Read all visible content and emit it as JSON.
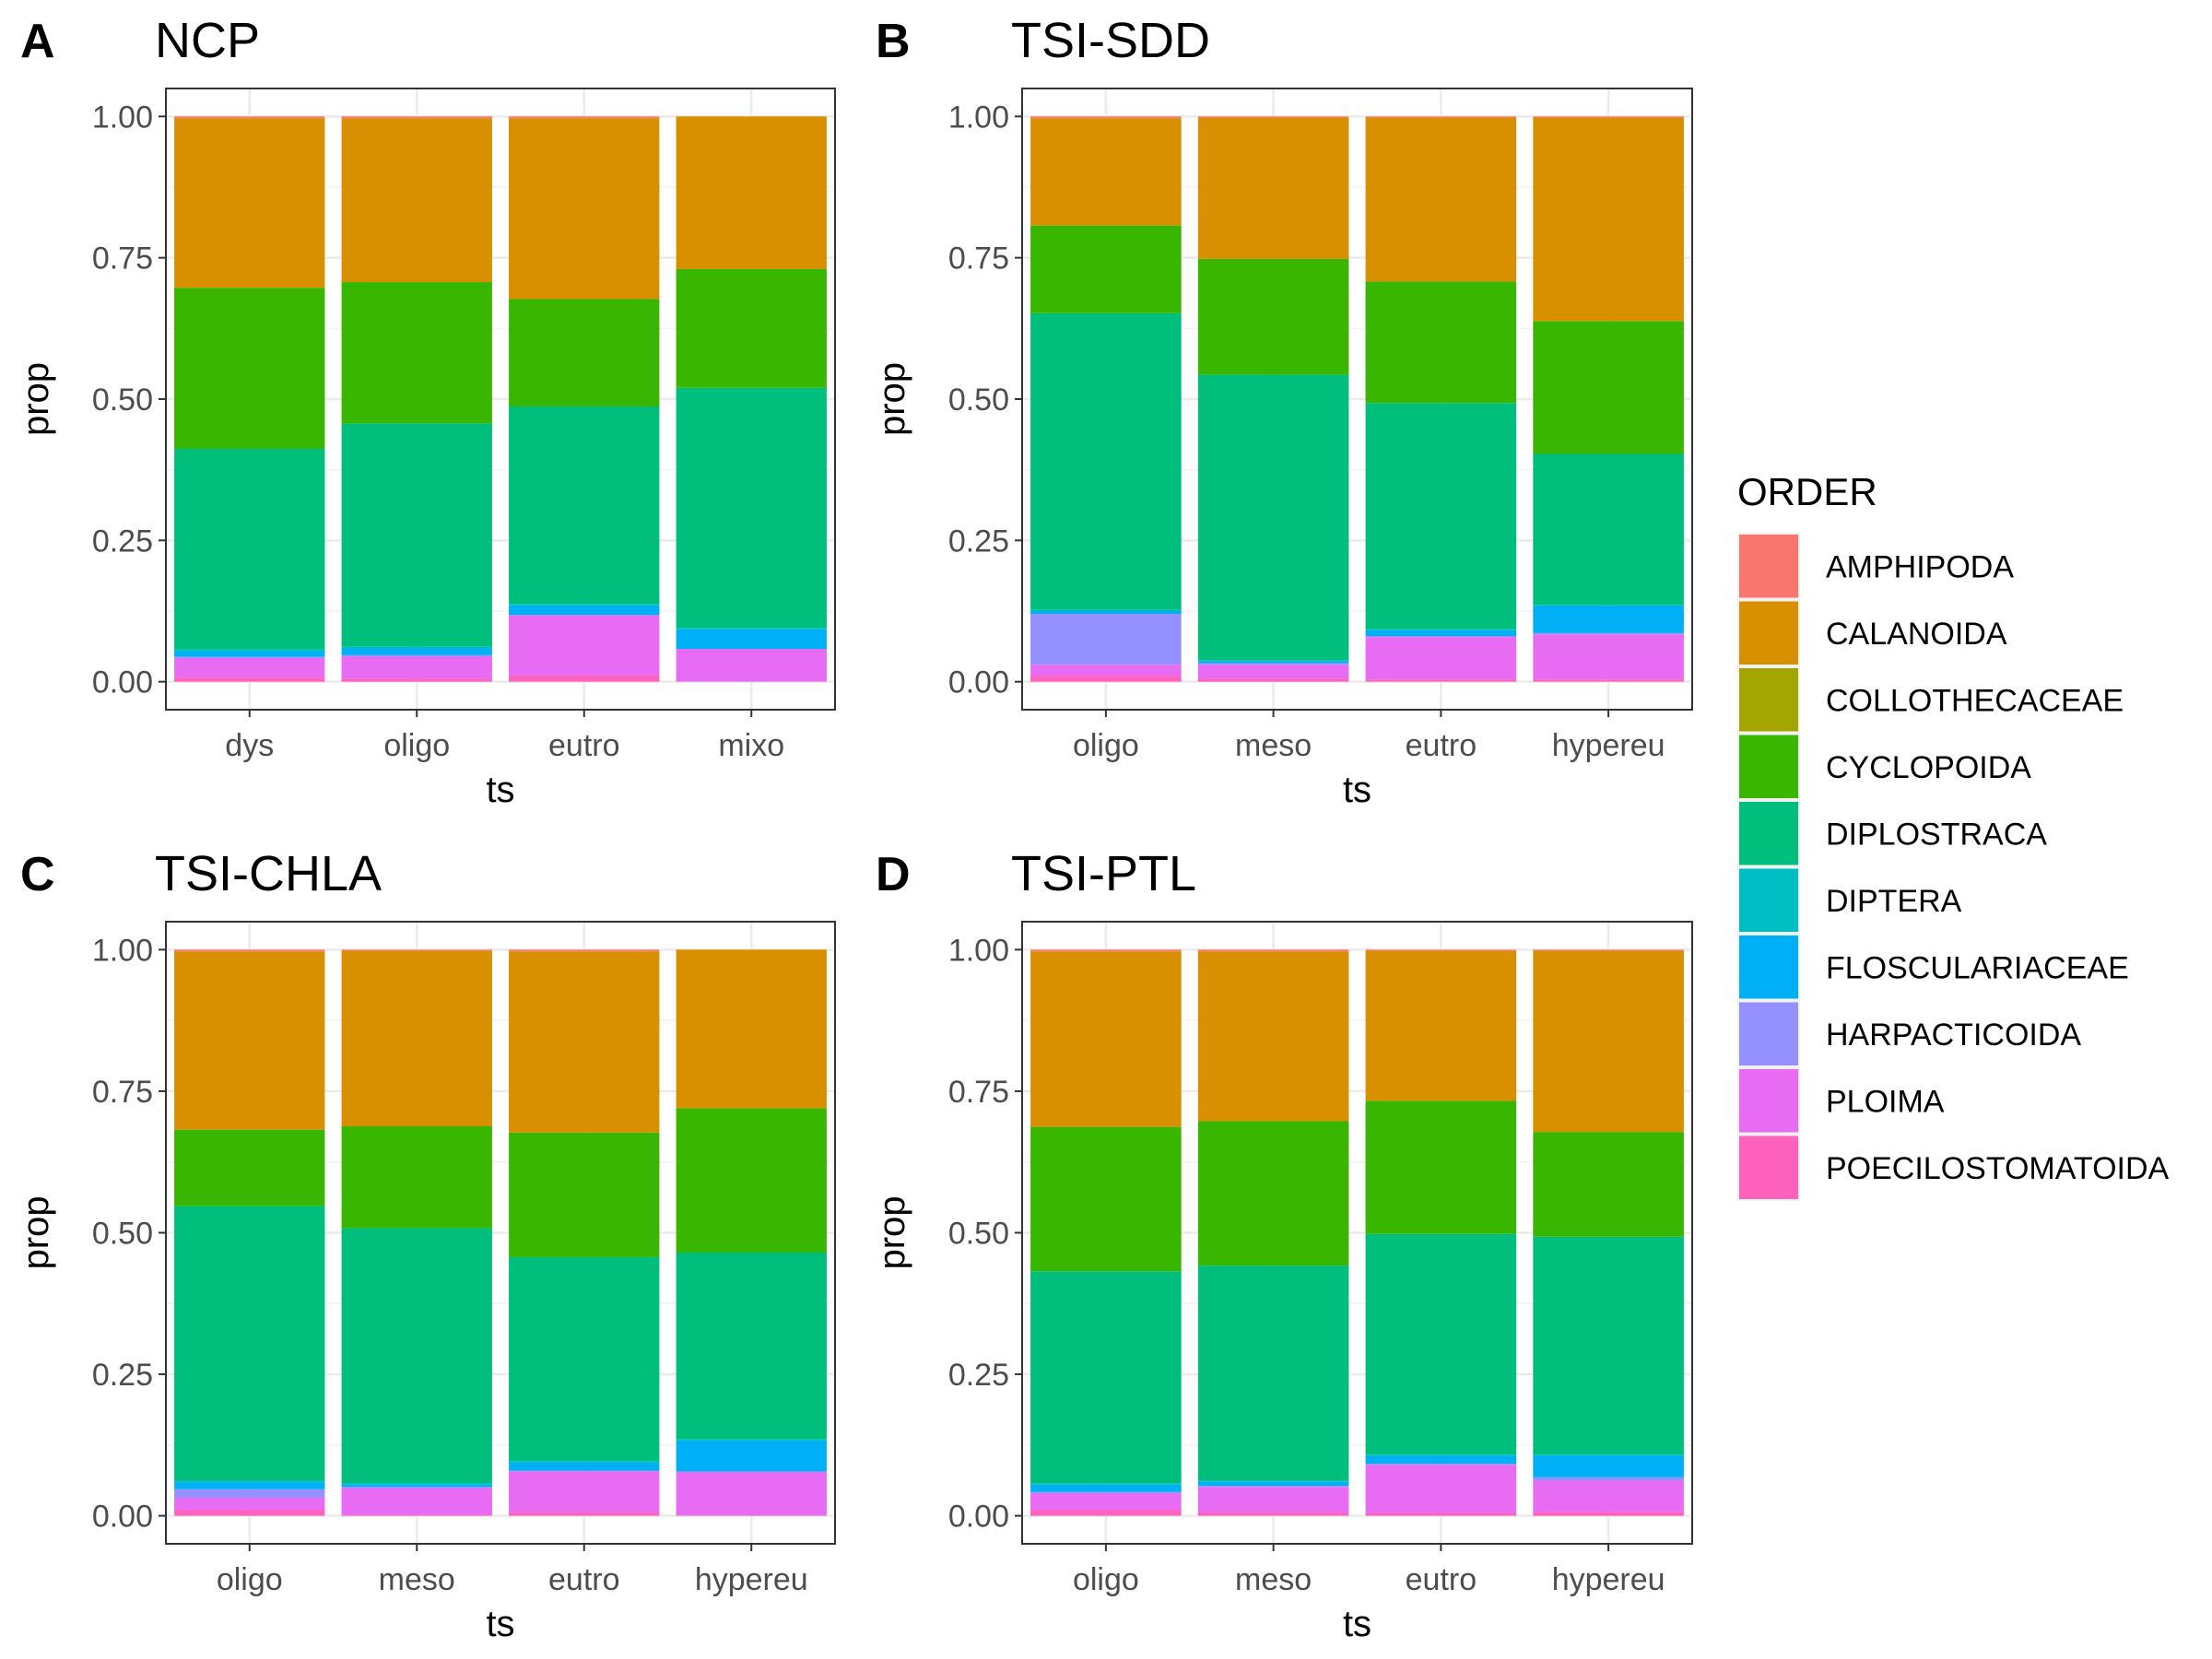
{
  "legend": {
    "title": "ORDER",
    "items": [
      {
        "label": "AMPHIPODA",
        "color": "#F8766D"
      },
      {
        "label": "CALANOIDA",
        "color": "#D89000"
      },
      {
        "label": "COLLOTHECACEAE",
        "color": "#A3A500"
      },
      {
        "label": "CYCLOPOIDA",
        "color": "#39B600"
      },
      {
        "label": "DIPLOSTRACA",
        "color": "#00BF7D"
      },
      {
        "label": "DIPTERA",
        "color": "#00BFC4"
      },
      {
        "label": "FLOSCULARIACEAE",
        "color": "#00B0F6"
      },
      {
        "label": "HARPACTICOIDA",
        "color": "#9590FF"
      },
      {
        "label": "PLOIMA",
        "color": "#E76BF3"
      },
      {
        "label": "POECILOSTOMATOIDA",
        "color": "#FF62BC"
      }
    ]
  },
  "chart_data": [
    {
      "type": "bar",
      "stacked": true,
      "panel_letter": "A",
      "title": "NCP",
      "xlabel": "ts",
      "ylabel": "prop",
      "ylim": [
        0,
        1
      ],
      "yticks": [
        "0.00",
        "0.25",
        "0.50",
        "0.75",
        "1.00"
      ],
      "grid": true,
      "categories": [
        "dys",
        "oligo",
        "eutro",
        "mixo"
      ],
      "series": [
        {
          "name": "AMPHIPODA",
          "values": [
            0.003,
            0.003,
            0.003,
            0.0
          ]
        },
        {
          "name": "CALANOIDA",
          "values": [
            0.3,
            0.29,
            0.32,
            0.27
          ]
        },
        {
          "name": "COLLOTHECACEAE",
          "values": [
            0.0,
            0.0,
            0.0,
            0.0
          ]
        },
        {
          "name": "CYCLOPOIDA",
          "values": [
            0.285,
            0.25,
            0.19,
            0.21
          ]
        },
        {
          "name": "DIPLOSTRACA",
          "values": [
            0.355,
            0.395,
            0.35,
            0.425
          ]
        },
        {
          "name": "DIPTERA",
          "values": [
            0.003,
            0.003,
            0.002,
            0.002
          ]
        },
        {
          "name": "FLOSCULARIACEAE",
          "values": [
            0.01,
            0.012,
            0.017,
            0.035
          ]
        },
        {
          "name": "HARPACTICOIDA",
          "values": [
            0.002,
            0.002,
            0.0,
            0.0
          ]
        },
        {
          "name": "PLOIMA",
          "values": [
            0.035,
            0.04,
            0.107,
            0.058
          ]
        },
        {
          "name": "POECILOSTOMATOIDA",
          "values": [
            0.007,
            0.005,
            0.011,
            0.0
          ]
        }
      ]
    },
    {
      "type": "bar",
      "stacked": true,
      "panel_letter": "B",
      "title": "TSI-SDD",
      "xlabel": "ts",
      "ylabel": "prop",
      "ylim": [
        0,
        1
      ],
      "yticks": [
        "0.00",
        "0.25",
        "0.50",
        "0.75",
        "1.00"
      ],
      "grid": true,
      "categories": [
        "oligo",
        "meso",
        "eutro",
        "hypereu"
      ],
      "series": [
        {
          "name": "AMPHIPODA",
          "values": [
            0.003,
            0.002,
            0.002,
            0.002
          ]
        },
        {
          "name": "CALANOIDA",
          "values": [
            0.19,
            0.25,
            0.29,
            0.36
          ]
        },
        {
          "name": "COLLOTHECACEAE",
          "values": [
            0.0,
            0.0,
            0.0,
            0.0
          ]
        },
        {
          "name": "CYCLOPOIDA",
          "values": [
            0.155,
            0.205,
            0.215,
            0.235
          ]
        },
        {
          "name": "DIPLOSTRACA",
          "values": [
            0.525,
            0.505,
            0.4,
            0.267
          ]
        },
        {
          "name": "DIPTERA",
          "values": [
            0.002,
            0.002,
            0.002,
            0.002
          ]
        },
        {
          "name": "FLOSCULARIACEAE",
          "values": [
            0.005,
            0.003,
            0.01,
            0.048
          ]
        },
        {
          "name": "HARPACTICOIDA",
          "values": [
            0.09,
            0.003,
            0.002,
            0.002
          ]
        },
        {
          "name": "PLOIMA",
          "values": [
            0.02,
            0.025,
            0.075,
            0.08
          ]
        },
        {
          "name": "POECILOSTOMATOIDA",
          "values": [
            0.01,
            0.005,
            0.004,
            0.004
          ]
        }
      ]
    },
    {
      "type": "bar",
      "stacked": true,
      "panel_letter": "C",
      "title": "TSI-CHLA",
      "xlabel": "ts",
      "ylabel": "prop",
      "ylim": [
        0,
        1
      ],
      "yticks": [
        "0.00",
        "0.25",
        "0.50",
        "0.75",
        "1.00"
      ],
      "grid": true,
      "categories": [
        "oligo",
        "meso",
        "eutro",
        "hypereu"
      ],
      "series": [
        {
          "name": "AMPHIPODA",
          "values": [
            0.003,
            0.002,
            0.003,
            0.0
          ]
        },
        {
          "name": "CALANOIDA",
          "values": [
            0.315,
            0.31,
            0.32,
            0.28
          ]
        },
        {
          "name": "COLLOTHECACEAE",
          "values": [
            0.0,
            0.0,
            0.0,
            0.0
          ]
        },
        {
          "name": "CYCLOPOIDA",
          "values": [
            0.135,
            0.18,
            0.22,
            0.255
          ]
        },
        {
          "name": "DIPLOSTRACA",
          "values": [
            0.485,
            0.45,
            0.36,
            0.33
          ]
        },
        {
          "name": "DIPTERA",
          "values": [
            0.003,
            0.003,
            0.003,
            0.002
          ]
        },
        {
          "name": "FLOSCULARIACEAE",
          "values": [
            0.012,
            0.004,
            0.014,
            0.055
          ]
        },
        {
          "name": "HARPACTICOIDA",
          "values": [
            0.015,
            0.002,
            0.002,
            0.0
          ]
        },
        {
          "name": "PLOIMA",
          "values": [
            0.022,
            0.047,
            0.072,
            0.078
          ]
        },
        {
          "name": "POECILOSTOMATOIDA",
          "values": [
            0.01,
            0.002,
            0.006,
            0.0
          ]
        }
      ]
    },
    {
      "type": "bar",
      "stacked": true,
      "panel_letter": "D",
      "title": "TSI-PTL",
      "xlabel": "ts",
      "ylabel": "prop",
      "ylim": [
        0,
        1
      ],
      "yticks": [
        "0.00",
        "0.25",
        "0.50",
        "0.75",
        "1.00"
      ],
      "grid": true,
      "categories": [
        "oligo",
        "meso",
        "eutro",
        "hypereu"
      ],
      "series": [
        {
          "name": "AMPHIPODA",
          "values": [
            0.003,
            0.003,
            0.002,
            0.002
          ]
        },
        {
          "name": "CALANOIDA",
          "values": [
            0.31,
            0.3,
            0.265,
            0.32
          ]
        },
        {
          "name": "COLLOTHECACEAE",
          "values": [
            0.0,
            0.0,
            0.0,
            0.0
          ]
        },
        {
          "name": "CYCLOPOIDA",
          "values": [
            0.255,
            0.255,
            0.235,
            0.185
          ]
        },
        {
          "name": "DIPLOSTRACA",
          "values": [
            0.375,
            0.38,
            0.39,
            0.385
          ]
        },
        {
          "name": "DIPTERA",
          "values": [
            0.002,
            0.002,
            0.002,
            0.002
          ]
        },
        {
          "name": "FLOSCULARIACEAE",
          "values": [
            0.013,
            0.007,
            0.014,
            0.038
          ]
        },
        {
          "name": "HARPACTICOIDA",
          "values": [
            0.002,
            0.002,
            0.002,
            0.006
          ]
        },
        {
          "name": "PLOIMA",
          "values": [
            0.03,
            0.045,
            0.085,
            0.055
          ]
        },
        {
          "name": "POECILOSTOMATOIDA",
          "values": [
            0.01,
            0.006,
            0.005,
            0.007
          ]
        }
      ]
    }
  ]
}
